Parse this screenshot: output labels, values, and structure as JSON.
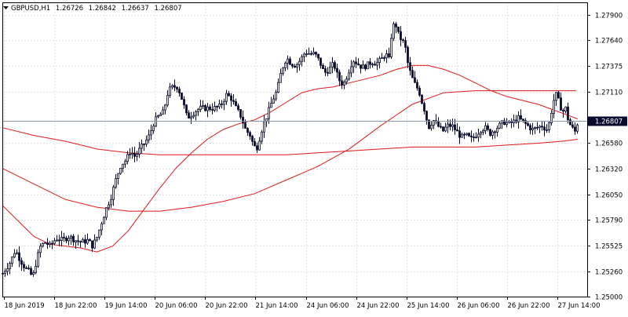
{
  "header": {
    "symbol": "GBPUSD,H1",
    "open": "1.26726",
    "high": "1.26842",
    "low": "1.26637",
    "close": "1.26807"
  },
  "colors": {
    "background": "#ffffff",
    "candle": "#0a0a2e",
    "ma": "#e01818",
    "grid": "#e2e2e2",
    "price_line": "#8a96ad",
    "price_tag_bg": "#0a0a2e",
    "price_tag_text": "#ffffff"
  },
  "chart_data": {
    "type": "candlestick",
    "symbol": "GBPUSD",
    "timeframe": "H1",
    "current_price_label": "1.26807",
    "ylim": [
      1.25,
      1.2803
    ],
    "y_ticks": [
      "1.27900",
      "1.27640",
      "1.27375",
      "1.27110",
      "1.26580",
      "1.26320",
      "1.26050",
      "1.25790",
      "1.25525",
      "1.25260",
      "1.25000"
    ],
    "x_ticks": [
      "18 Jun 2019",
      "18 Jun 22:00",
      "19 Jun 14:00",
      "20 Jun 06:00",
      "20 Jun 22:00",
      "21 Jun 14:00",
      "24 Jun 06:00",
      "24 Jun 22:00",
      "25 Jun 14:00",
      "26 Jun 06:00",
      "26 Jun 22:00",
      "27 Jun 14:00"
    ],
    "grid": true,
    "price_path": [
      [
        0,
        1.2524
      ],
      [
        10,
        1.2536
      ],
      [
        16,
        1.2548
      ],
      [
        22,
        1.2538
      ],
      [
        28,
        1.253
      ],
      [
        33,
        1.2526
      ],
      [
        38,
        1.252
      ],
      [
        43,
        1.2538
      ],
      [
        48,
        1.2552
      ],
      [
        54,
        1.2556
      ],
      [
        60,
        1.2552
      ],
      [
        68,
        1.256
      ],
      [
        76,
        1.2558
      ],
      [
        84,
        1.2562
      ],
      [
        92,
        1.2558
      ],
      [
        100,
        1.2556
      ],
      [
        108,
        1.2558
      ],
      [
        114,
        1.2552
      ],
      [
        120,
        1.2562
      ],
      [
        126,
        1.2578
      ],
      [
        132,
        1.2592
      ],
      [
        138,
        1.2604
      ],
      [
        144,
        1.2622
      ],
      [
        150,
        1.2636
      ],
      [
        156,
        1.264
      ],
      [
        162,
        1.265
      ],
      [
        168,
        1.2644
      ],
      [
        174,
        1.2652
      ],
      [
        180,
        1.2658
      ],
      [
        186,
        1.2666
      ],
      [
        192,
        1.268
      ],
      [
        198,
        1.2686
      ],
      [
        204,
        1.269
      ],
      [
        210,
        1.2712
      ],
      [
        216,
        1.2716
      ],
      [
        222,
        1.2716
      ],
      [
        228,
        1.2702
      ],
      [
        234,
        1.2684
      ],
      [
        240,
        1.2688
      ],
      [
        246,
        1.2692
      ],
      [
        252,
        1.2694
      ],
      [
        260,
        1.2694
      ],
      [
        268,
        1.2694
      ],
      [
        276,
        1.2696
      ],
      [
        284,
        1.2708
      ],
      [
        290,
        1.2704
      ],
      [
        296,
        1.2694
      ],
      [
        302,
        1.2686
      ],
      [
        308,
        1.2672
      ],
      [
        314,
        1.2666
      ],
      [
        318,
        1.2656
      ],
      [
        322,
        1.2652
      ],
      [
        326,
        1.2664
      ],
      [
        330,
        1.2676
      ],
      [
        336,
        1.2688
      ],
      [
        342,
        1.2702
      ],
      [
        348,
        1.2712
      ],
      [
        354,
        1.2734
      ],
      [
        360,
        1.2746
      ],
      [
        366,
        1.274
      ],
      [
        372,
        1.2738
      ],
      [
        378,
        1.2744
      ],
      [
        384,
        1.2752
      ],
      [
        390,
        1.275
      ],
      [
        396,
        1.275
      ],
      [
        402,
        1.2742
      ],
      [
        408,
        1.273
      ],
      [
        414,
        1.2734
      ],
      [
        420,
        1.274
      ],
      [
        426,
        1.2724
      ],
      [
        432,
        1.2718
      ],
      [
        438,
        1.273
      ],
      [
        444,
        1.2744
      ],
      [
        450,
        1.274
      ],
      [
        456,
        1.2736
      ],
      [
        462,
        1.2738
      ],
      [
        468,
        1.2742
      ],
      [
        474,
        1.274
      ],
      [
        480,
        1.2744
      ],
      [
        486,
        1.275
      ],
      [
        490,
        1.2744
      ],
      [
        494,
        1.2776
      ],
      [
        498,
        1.2782
      ],
      [
        502,
        1.277
      ],
      [
        506,
        1.2764
      ],
      [
        510,
        1.276
      ],
      [
        514,
        1.274
      ],
      [
        518,
        1.2728
      ],
      [
        522,
        1.272
      ],
      [
        528,
        1.2712
      ],
      [
        532,
        1.27
      ],
      [
        536,
        1.269
      ],
      [
        540,
        1.2674
      ],
      [
        546,
        1.2682
      ],
      [
        552,
        1.2676
      ],
      [
        558,
        1.267
      ],
      [
        564,
        1.2676
      ],
      [
        570,
        1.2676
      ],
      [
        576,
        1.267
      ],
      [
        582,
        1.2664
      ],
      [
        588,
        1.2666
      ],
      [
        594,
        1.2662
      ],
      [
        600,
        1.2666
      ],
      [
        606,
        1.2672
      ],
      [
        612,
        1.2674
      ],
      [
        618,
        1.2668
      ],
      [
        624,
        1.2672
      ],
      [
        630,
        1.2676
      ],
      [
        636,
        1.268
      ],
      [
        642,
        1.2678
      ],
      [
        648,
        1.268
      ],
      [
        654,
        1.2684
      ],
      [
        660,
        1.268
      ],
      [
        666,
        1.2676
      ],
      [
        672,
        1.2672
      ],
      [
        678,
        1.2674
      ],
      [
        684,
        1.2676
      ],
      [
        690,
        1.2672
      ],
      [
        694,
        1.268
      ],
      [
        698,
        1.27
      ],
      [
        702,
        1.2708
      ],
      [
        706,
        1.27
      ],
      [
        710,
        1.269
      ],
      [
        714,
        1.2694
      ],
      [
        718,
        1.268
      ],
      [
        722,
        1.2674
      ],
      [
        726,
        1.267
      ],
      [
        730,
        1.2681
      ]
    ],
    "ma_fast": [
      [
        0,
        1.2594
      ],
      [
        20,
        1.2578
      ],
      [
        40,
        1.2562
      ],
      [
        60,
        1.2554
      ],
      [
        80,
        1.2552
      ],
      [
        100,
        1.255
      ],
      [
        120,
        1.2546
      ],
      [
        140,
        1.2552
      ],
      [
        160,
        1.2568
      ],
      [
        180,
        1.259
      ],
      [
        200,
        1.2612
      ],
      [
        220,
        1.2632
      ],
      [
        240,
        1.2648
      ],
      [
        260,
        1.2662
      ],
      [
        280,
        1.2672
      ],
      [
        300,
        1.2678
      ],
      [
        320,
        1.2682
      ],
      [
        340,
        1.269
      ],
      [
        360,
        1.27
      ],
      [
        380,
        1.271
      ],
      [
        400,
        1.2714
      ],
      [
        420,
        1.2716
      ],
      [
        440,
        1.272
      ],
      [
        460,
        1.2724
      ],
      [
        480,
        1.2728
      ],
      [
        500,
        1.2734
      ],
      [
        520,
        1.2738
      ],
      [
        540,
        1.2738
      ],
      [
        560,
        1.2734
      ],
      [
        580,
        1.2728
      ],
      [
        600,
        1.272
      ],
      [
        620,
        1.2712
      ],
      [
        640,
        1.2706
      ],
      [
        660,
        1.2702
      ],
      [
        680,
        1.2698
      ],
      [
        700,
        1.2692
      ],
      [
        720,
        1.2686
      ],
      [
        730,
        1.2683
      ]
    ],
    "ma_medium": [
      [
        0,
        1.2632
      ],
      [
        40,
        1.2616
      ],
      [
        80,
        1.26
      ],
      [
        120,
        1.2592
      ],
      [
        160,
        1.2588
      ],
      [
        200,
        1.2588
      ],
      [
        240,
        1.2592
      ],
      [
        280,
        1.2598
      ],
      [
        320,
        1.2606
      ],
      [
        360,
        1.262
      ],
      [
        400,
        1.2634
      ],
      [
        440,
        1.2652
      ],
      [
        480,
        1.2676
      ],
      [
        520,
        1.2698
      ],
      [
        560,
        1.271
      ],
      [
        600,
        1.2712
      ],
      [
        640,
        1.2712
      ],
      [
        680,
        1.2712
      ],
      [
        710,
        1.2712
      ],
      [
        728,
        1.2712
      ]
    ],
    "ma_slow": [
      [
        0,
        1.2674
      ],
      [
        40,
        1.2666
      ],
      [
        80,
        1.266
      ],
      [
        120,
        1.2652
      ],
      [
        160,
        1.2648
      ],
      [
        200,
        1.2646
      ],
      [
        240,
        1.2646
      ],
      [
        280,
        1.2646
      ],
      [
        320,
        1.2646
      ],
      [
        360,
        1.2646
      ],
      [
        400,
        1.2648
      ],
      [
        440,
        1.265
      ],
      [
        480,
        1.2652
      ],
      [
        520,
        1.2654
      ],
      [
        560,
        1.2654
      ],
      [
        600,
        1.2654
      ],
      [
        640,
        1.2656
      ],
      [
        680,
        1.2658
      ],
      [
        710,
        1.266
      ],
      [
        730,
        1.2662
      ]
    ]
  }
}
